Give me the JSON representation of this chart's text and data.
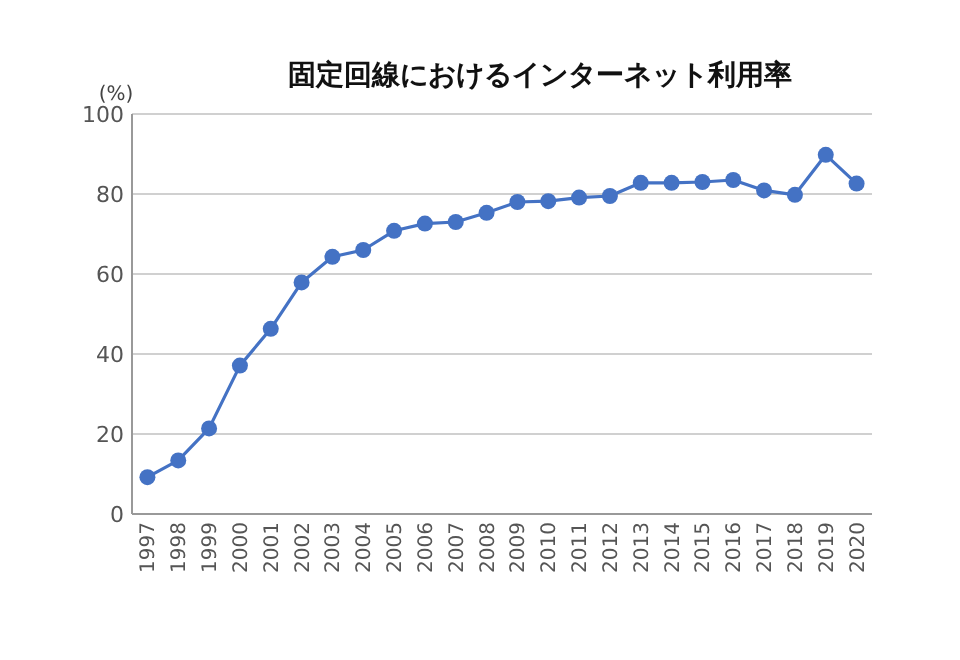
{
  "chart_data": {
    "type": "line",
    "title": "固定回線におけるインターネット利用率",
    "ylabel": "(%)",
    "categories": [
      "1997",
      "1998",
      "1999",
      "2000",
      "2001",
      "2002",
      "2003",
      "2004",
      "2005",
      "2006",
      "2007",
      "2008",
      "2009",
      "2010",
      "2011",
      "2012",
      "2013",
      "2014",
      "2015",
      "2016",
      "2017",
      "2018",
      "2019",
      "2020"
    ],
    "series": [
      {
        "color": "#4472c4",
        "values": [
          9.2,
          13.4,
          21.4,
          37.1,
          46.3,
          57.9,
          64.3,
          66.0,
          70.8,
          72.6,
          73.0,
          75.3,
          78.0,
          78.2,
          79.1,
          79.5,
          82.8,
          82.8,
          83.0,
          83.5,
          80.9,
          79.8,
          89.8,
          82.6
        ]
      }
    ],
    "ylim": [
      0,
      100
    ],
    "yticks": [
      0,
      20,
      40,
      60,
      80,
      100
    ],
    "grid": "y",
    "marker": "circle",
    "line_style": "solid"
  }
}
